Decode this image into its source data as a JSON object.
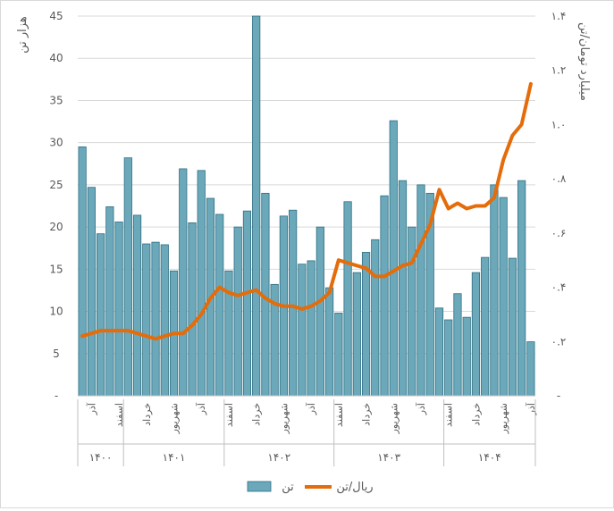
{
  "chart_data": {
    "type": "bar+line",
    "left_axis_title": "هزار تن",
    "right_axis_title": "میلیارد تومان/تن",
    "left_ylim": [
      0,
      45
    ],
    "left_ticks": [
      "-",
      "5",
      "10",
      "15",
      "20",
      "25",
      "30",
      "35",
      "40",
      "45"
    ],
    "right_ylim": [
      0,
      1.4
    ],
    "right_ticks": [
      "-",
      "۰.۲",
      "۰.۴",
      "۰.۶",
      "۰.۸",
      "۱.۰",
      "۱.۲",
      "۱.۴"
    ],
    "grid": "horizontal",
    "legend_position": "bottom",
    "x_month_labels": [
      {
        "index": 1,
        "label": "آذر"
      },
      {
        "index": 4,
        "label": "اسفند"
      },
      {
        "index": 7,
        "label": "خرداد"
      },
      {
        "index": 10,
        "label": "شهریور"
      },
      {
        "index": 13,
        "label": "آذر"
      },
      {
        "index": 16,
        "label": "اسفند"
      },
      {
        "index": 19,
        "label": "خرداد"
      },
      {
        "index": 22,
        "label": "شهریور"
      },
      {
        "index": 25,
        "label": "آذر"
      },
      {
        "index": 28,
        "label": "اسفند"
      },
      {
        "index": 31,
        "label": "خرداد"
      },
      {
        "index": 34,
        "label": "شهریور"
      },
      {
        "index": 37,
        "label": "آذر"
      },
      {
        "index": 40,
        "label": "اسفند"
      },
      {
        "index": 43,
        "label": "خرداد"
      },
      {
        "index": 46,
        "label": "شهریور"
      },
      {
        "index": 49,
        "label": "آذر"
      }
    ],
    "year_groups": [
      {
        "label": "۱۴۰۰",
        "start": 0,
        "end": 5
      },
      {
        "label": "۱۴۰۱",
        "start": 5,
        "end": 16
      },
      {
        "label": "۱۴۰۲",
        "start": 16,
        "end": 28
      },
      {
        "label": "۱۴۰۳",
        "start": 28,
        "end": 40
      },
      {
        "label": "۱۴۰۴",
        "start": 40,
        "end": 50
      }
    ],
    "series": [
      {
        "name": "تن",
        "kind": "bar",
        "axis": "left",
        "color": "#6aa8ba",
        "values": [
          29.5,
          24.7,
          19.2,
          22.4,
          20.6,
          28.2,
          21.4,
          18.0,
          18.2,
          17.9,
          14.8,
          26.9,
          20.5,
          26.7,
          23.4,
          21.5,
          14.8,
          20.0,
          21.9,
          45.0,
          24.0,
          13.2,
          21.3,
          22.0,
          15.6,
          16.0,
          20.0,
          12.8,
          9.8,
          23.0,
          14.6,
          17.0,
          18.5,
          23.7,
          32.6,
          25.5,
          20.0,
          25.0,
          24.0,
          10.4,
          9.0,
          12.1,
          9.3,
          14.6,
          16.4,
          25.0,
          23.5,
          16.3,
          25.5,
          6.4
        ]
      },
      {
        "name": "ریال/تن",
        "kind": "line",
        "axis": "right",
        "color": "#e46c0a",
        "values": [
          0.22,
          0.23,
          0.24,
          0.24,
          0.24,
          0.24,
          0.23,
          0.22,
          0.21,
          0.22,
          0.23,
          0.23,
          0.26,
          0.3,
          0.36,
          0.4,
          0.38,
          0.37,
          0.38,
          0.39,
          0.36,
          0.34,
          0.33,
          0.33,
          0.32,
          0.33,
          0.35,
          0.38,
          0.5,
          0.49,
          0.48,
          0.47,
          0.44,
          0.44,
          0.46,
          0.48,
          0.49,
          0.56,
          0.63,
          0.76,
          0.69,
          0.71,
          0.69,
          0.7,
          0.7,
          0.73,
          0.87,
          0.96,
          1.0,
          1.15
        ]
      }
    ]
  }
}
